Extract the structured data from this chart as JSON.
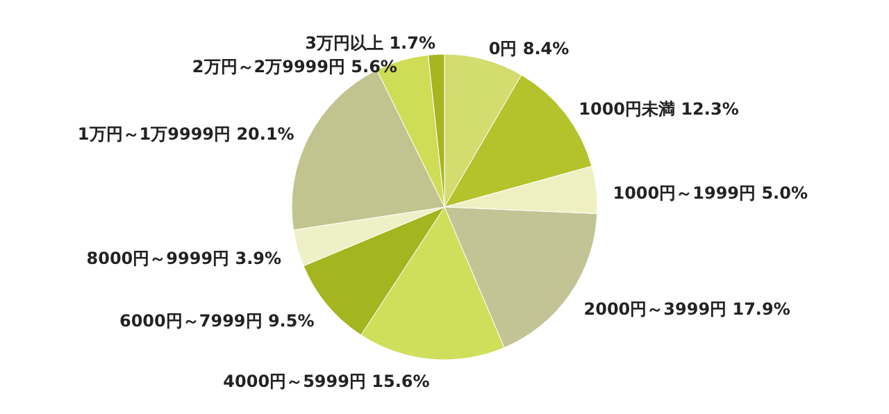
{
  "chart_data": {
    "type": "pie",
    "categories": [
      "0円",
      "1000円未満",
      "1000円～1999円",
      "2000円～3999円",
      "4000円～5999円",
      "6000円～7999円",
      "8000円～9999円",
      "1万円～1万9999円",
      "2万円～2万9999円",
      "3万円以上"
    ],
    "values": [
      8.4,
      12.3,
      5.0,
      17.9,
      15.6,
      9.5,
      3.9,
      20.1,
      5.6,
      1.7
    ],
    "value_labels": [
      "8.4%",
      "12.3%",
      "5.0%",
      "17.9%",
      "15.6%",
      "9.5%",
      "3.9%",
      "20.1%",
      "5.6%",
      "1.7%"
    ],
    "colors": [
      "#d3dc6e",
      "#b4c22c",
      "#eef0c2",
      "#c2c495",
      "#cfdf5c",
      "#a4b51f",
      "#eef0c6",
      "#c2c48f",
      "#cfdc56",
      "#a8b521"
    ]
  }
}
